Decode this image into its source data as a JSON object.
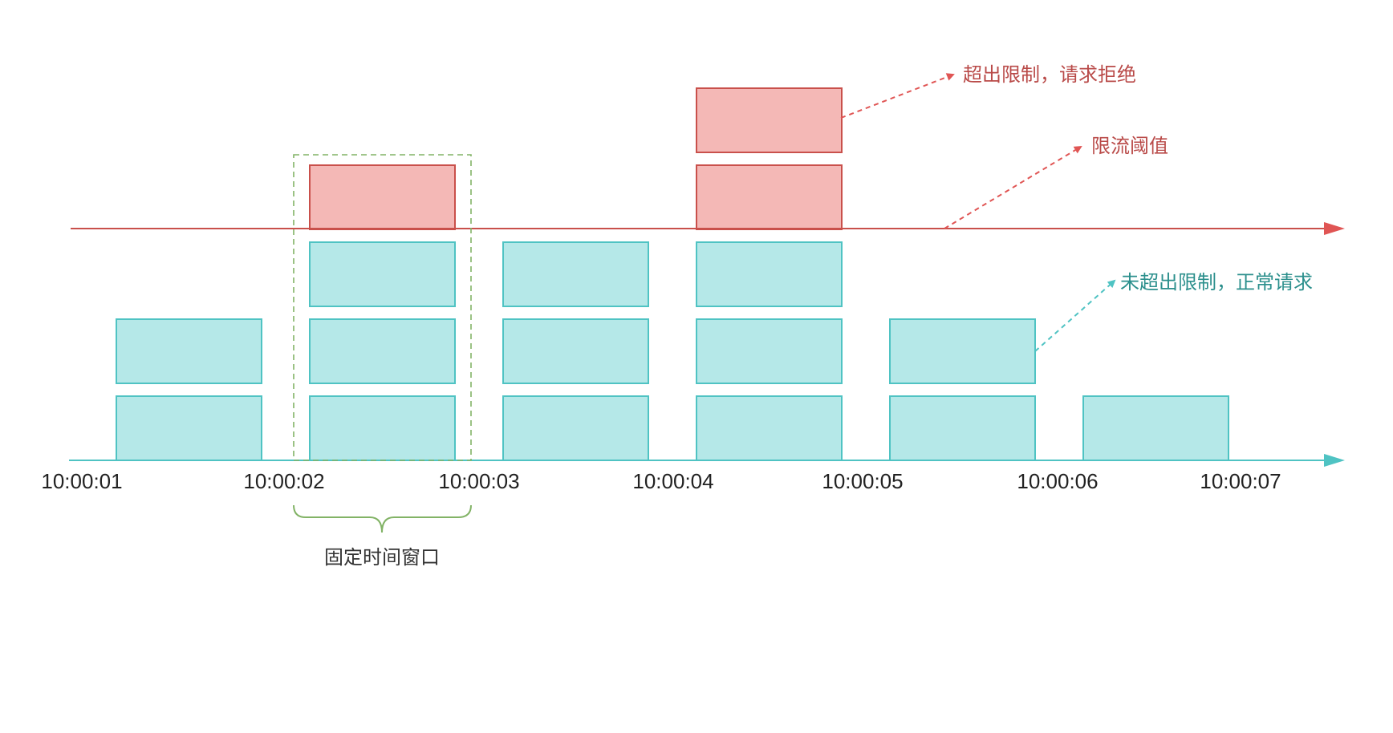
{
  "time_labels": [
    "10:00:01",
    "10:00:02",
    "10:00:03",
    "10:00:04",
    "10:00:05",
    "10:00:06",
    "10:00:07"
  ],
  "windows": [
    {
      "window": 1,
      "accepted": 2,
      "rejected": 0
    },
    {
      "window": 2,
      "accepted": 3,
      "rejected": 1
    },
    {
      "window": 3,
      "accepted": 3,
      "rejected": 0
    },
    {
      "window": 4,
      "accepted": 3,
      "rejected": 2
    },
    {
      "window": 5,
      "accepted": 2,
      "rejected": 0
    },
    {
      "window": 6,
      "accepted": 1,
      "rejected": 0
    }
  ],
  "threshold": 3,
  "annotations": {
    "rejected": "超出限制，请求拒绝",
    "threshold": "限流阈值",
    "accepted": "未超出限制，正常请求",
    "fixed_window": "固定时间窗口"
  },
  "colors": {
    "accepted_fill": "#b5e8e8",
    "accepted_stroke": "#4fc3c3",
    "rejected_fill": "#f4b8b6",
    "rejected_stroke": "#c9504b",
    "threshold_line": "#c9504b",
    "time_axis": "#4fc3c3",
    "window_highlight": "#82b366"
  }
}
